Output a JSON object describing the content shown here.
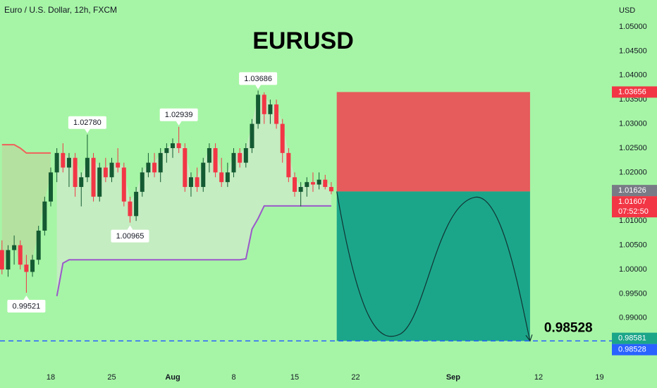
{
  "chart_data": {
    "type": "candlestick",
    "title": "EURUSD",
    "subtitle": "Euro / U.S. Dollar, 12h, FXCM",
    "y_axis_label": "USD",
    "up_color": "#145a32",
    "down_color": "#f23645",
    "xlim": [
      -0.324,
      100.02
    ],
    "ylim": [
      0.97994,
      1.05552
    ],
    "xticks": [
      {
        "value": 8,
        "label": "18"
      },
      {
        "value": 18,
        "label": "25"
      },
      {
        "value": 28,
        "label": "Aug"
      },
      {
        "value": 38,
        "label": "8"
      },
      {
        "value": 48,
        "label": "15"
      },
      {
        "value": 58,
        "label": "22"
      },
      {
        "value": 74,
        "label": "Sep"
      },
      {
        "value": 88,
        "label": "12"
      },
      {
        "value": 98,
        "label": "19"
      }
    ],
    "yticks": [
      {
        "value": 1.05,
        "label": "1.05000"
      },
      {
        "value": 1.045,
        "label": "1.04500"
      },
      {
        "value": 1.04,
        "label": "1.04000"
      },
      {
        "value": 1.035,
        "label": "1.03500"
      },
      {
        "value": 1.03,
        "label": "1.03000"
      },
      {
        "value": 1.025,
        "label": "1.02500"
      },
      {
        "value": 1.02,
        "label": "1.02000"
      },
      {
        "value": 1.01,
        "label": "1.01000"
      },
      {
        "value": 1.005,
        "label": "1.00500"
      },
      {
        "value": 1,
        "label": "1.00000"
      },
      {
        "value": 0.995,
        "label": "0.99500"
      },
      {
        "value": 0.99,
        "label": "0.99000"
      }
    ],
    "open": [
      1.004,
      1.0,
      1.004,
      1.005,
      1.001,
      0.9995,
      1.002,
      1.008,
      1.014,
      1.02,
      1.024,
      1.021,
      1.023,
      1.017,
      1.019,
      1.023,
      1.015,
      1.021,
      1.019,
      1.022,
      1.021,
      1.014,
      1.011,
      1.016,
      1.02,
      1.022,
      1.02,
      1.024,
      1.025,
      1.026,
      1.025,
      1.017,
      1.019,
      1.017,
      1.022,
      1.025,
      1.02,
      1.018,
      1.02,
      1.024,
      1.022,
      1.025,
      1.03,
      1.036,
      1.032,
      1.034,
      1.03,
      1.024,
      1.019,
      1.016,
      1.017,
      1.018,
      1.0175,
      1.0185,
      1.017
    ],
    "high": [
      1.006,
      1.005,
      1.007,
      1.006,
      1.003,
      1.003,
      1.009,
      1.015,
      1.021,
      1.025,
      1.026,
      1.024,
      1.024,
      1.02,
      1.0278,
      1.024,
      1.022,
      1.023,
      1.023,
      1.025,
      1.022,
      1.015,
      1.017,
      1.021,
      1.024,
      1.024,
      1.025,
      1.026,
      1.027,
      1.02939,
      1.026,
      1.02,
      1.021,
      1.023,
      1.026,
      1.026,
      1.023,
      1.022,
      1.025,
      1.025,
      1.026,
      1.031,
      1.03686,
      1.0365,
      1.035,
      1.035,
      1.031,
      1.025,
      1.02,
      1.018,
      1.019,
      1.02,
      1.02,
      1.0195,
      1.018
    ],
    "low": [
      0.999,
      0.9985,
      1.001,
      1.0,
      0.99521,
      0.9985,
      1.001,
      1.007,
      1.013,
      1.018,
      1.02,
      1.017,
      1.015,
      1.013,
      1.018,
      1.014,
      1.014,
      1.018,
      1.018,
      1.02,
      1.013,
      1.00965,
      1.01,
      1.015,
      1.019,
      1.019,
      1.018,
      1.022,
      1.023,
      1.024,
      1.016,
      1.015,
      1.016,
      1.016,
      1.02,
      1.019,
      1.017,
      1.017,
      1.019,
      1.021,
      1.021,
      1.024,
      1.029,
      1.03,
      1.03,
      1.029,
      1.022,
      1.018,
      1.015,
      1.013,
      1.015,
      1.016,
      1.0165,
      1.0165,
      1.0155
    ],
    "close": [
      1.0,
      1.004,
      1.005,
      1.001,
      0.9995,
      1.002,
      1.008,
      1.014,
      1.02,
      1.024,
      1.021,
      1.023,
      1.017,
      1.019,
      1.023,
      1.015,
      1.021,
      1.019,
      1.022,
      1.021,
      1.014,
      1.011,
      1.016,
      1.02,
      1.022,
      1.02,
      1.024,
      1.025,
      1.026,
      1.025,
      1.017,
      1.019,
      1.017,
      1.022,
      1.025,
      1.02,
      1.018,
      1.02,
      1.024,
      1.022,
      1.025,
      1.03,
      1.036,
      1.032,
      1.034,
      1.03,
      1.024,
      1.019,
      1.016,
      1.017,
      1.018,
      1.0175,
      1.0185,
      1.017,
      1.0161
    ],
    "high_labels": {
      "14": "1.02780",
      "29": "1.02939",
      "42": "1.03686"
    },
    "low_labels": {
      "4": "0.99521",
      "21": "1.00965"
    },
    "band_upper": [
      1.0257,
      1.0257,
      1.0257,
      1.025,
      1.024,
      1.024,
      1.024,
      1.024,
      1.024
    ],
    "band_upper_color": "#f0605a",
    "band_lower": [
      null,
      null,
      null,
      null,
      null,
      null,
      null,
      null,
      null,
      0.9945,
      1.0013,
      1.002,
      1.002,
      1.002,
      1.002,
      1.002,
      1.002,
      1.002,
      1.002,
      1.002,
      1.002,
      1.002,
      1.002,
      1.002,
      1.002,
      1.002,
      1.002,
      1.002,
      1.002,
      1.002,
      1.002,
      1.002,
      1.002,
      1.002,
      1.002,
      1.002,
      1.002,
      1.002,
      1.002,
      1.002,
      1.0022,
      1.0083,
      1.0105,
      1.0131,
      1.0131,
      1.0131,
      1.0131,
      1.0131,
      1.0131,
      1.0131,
      1.0131,
      1.0131,
      1.0131,
      1.0131,
      1.0131
    ],
    "band_lower_color": "#9b59c9",
    "position": {
      "start": 54.9,
      "end": 86.6,
      "stop": 1.03656,
      "entry": 1.01607,
      "target": 0.98528,
      "target_label": "0.98528",
      "stop_color": "#e65b5b",
      "target_color": "#1ba68a"
    },
    "target_line_color": "#2962ff",
    "price_badges": [
      {
        "value": 1.03656,
        "label": "1.03656",
        "color": "#f23645"
      },
      {
        "value": 1.01626,
        "label": "1.01626",
        "color": "#787b86"
      },
      {
        "value": 1.01607,
        "label": "1.01607",
        "color": "#f23645",
        "countdown": "07:52:50"
      },
      {
        "value": 0.98581,
        "label": "0.98581",
        "color": "#1ba68a"
      },
      {
        "value": 0.98528,
        "label": "0.98528",
        "color": "#2962ff"
      }
    ]
  }
}
